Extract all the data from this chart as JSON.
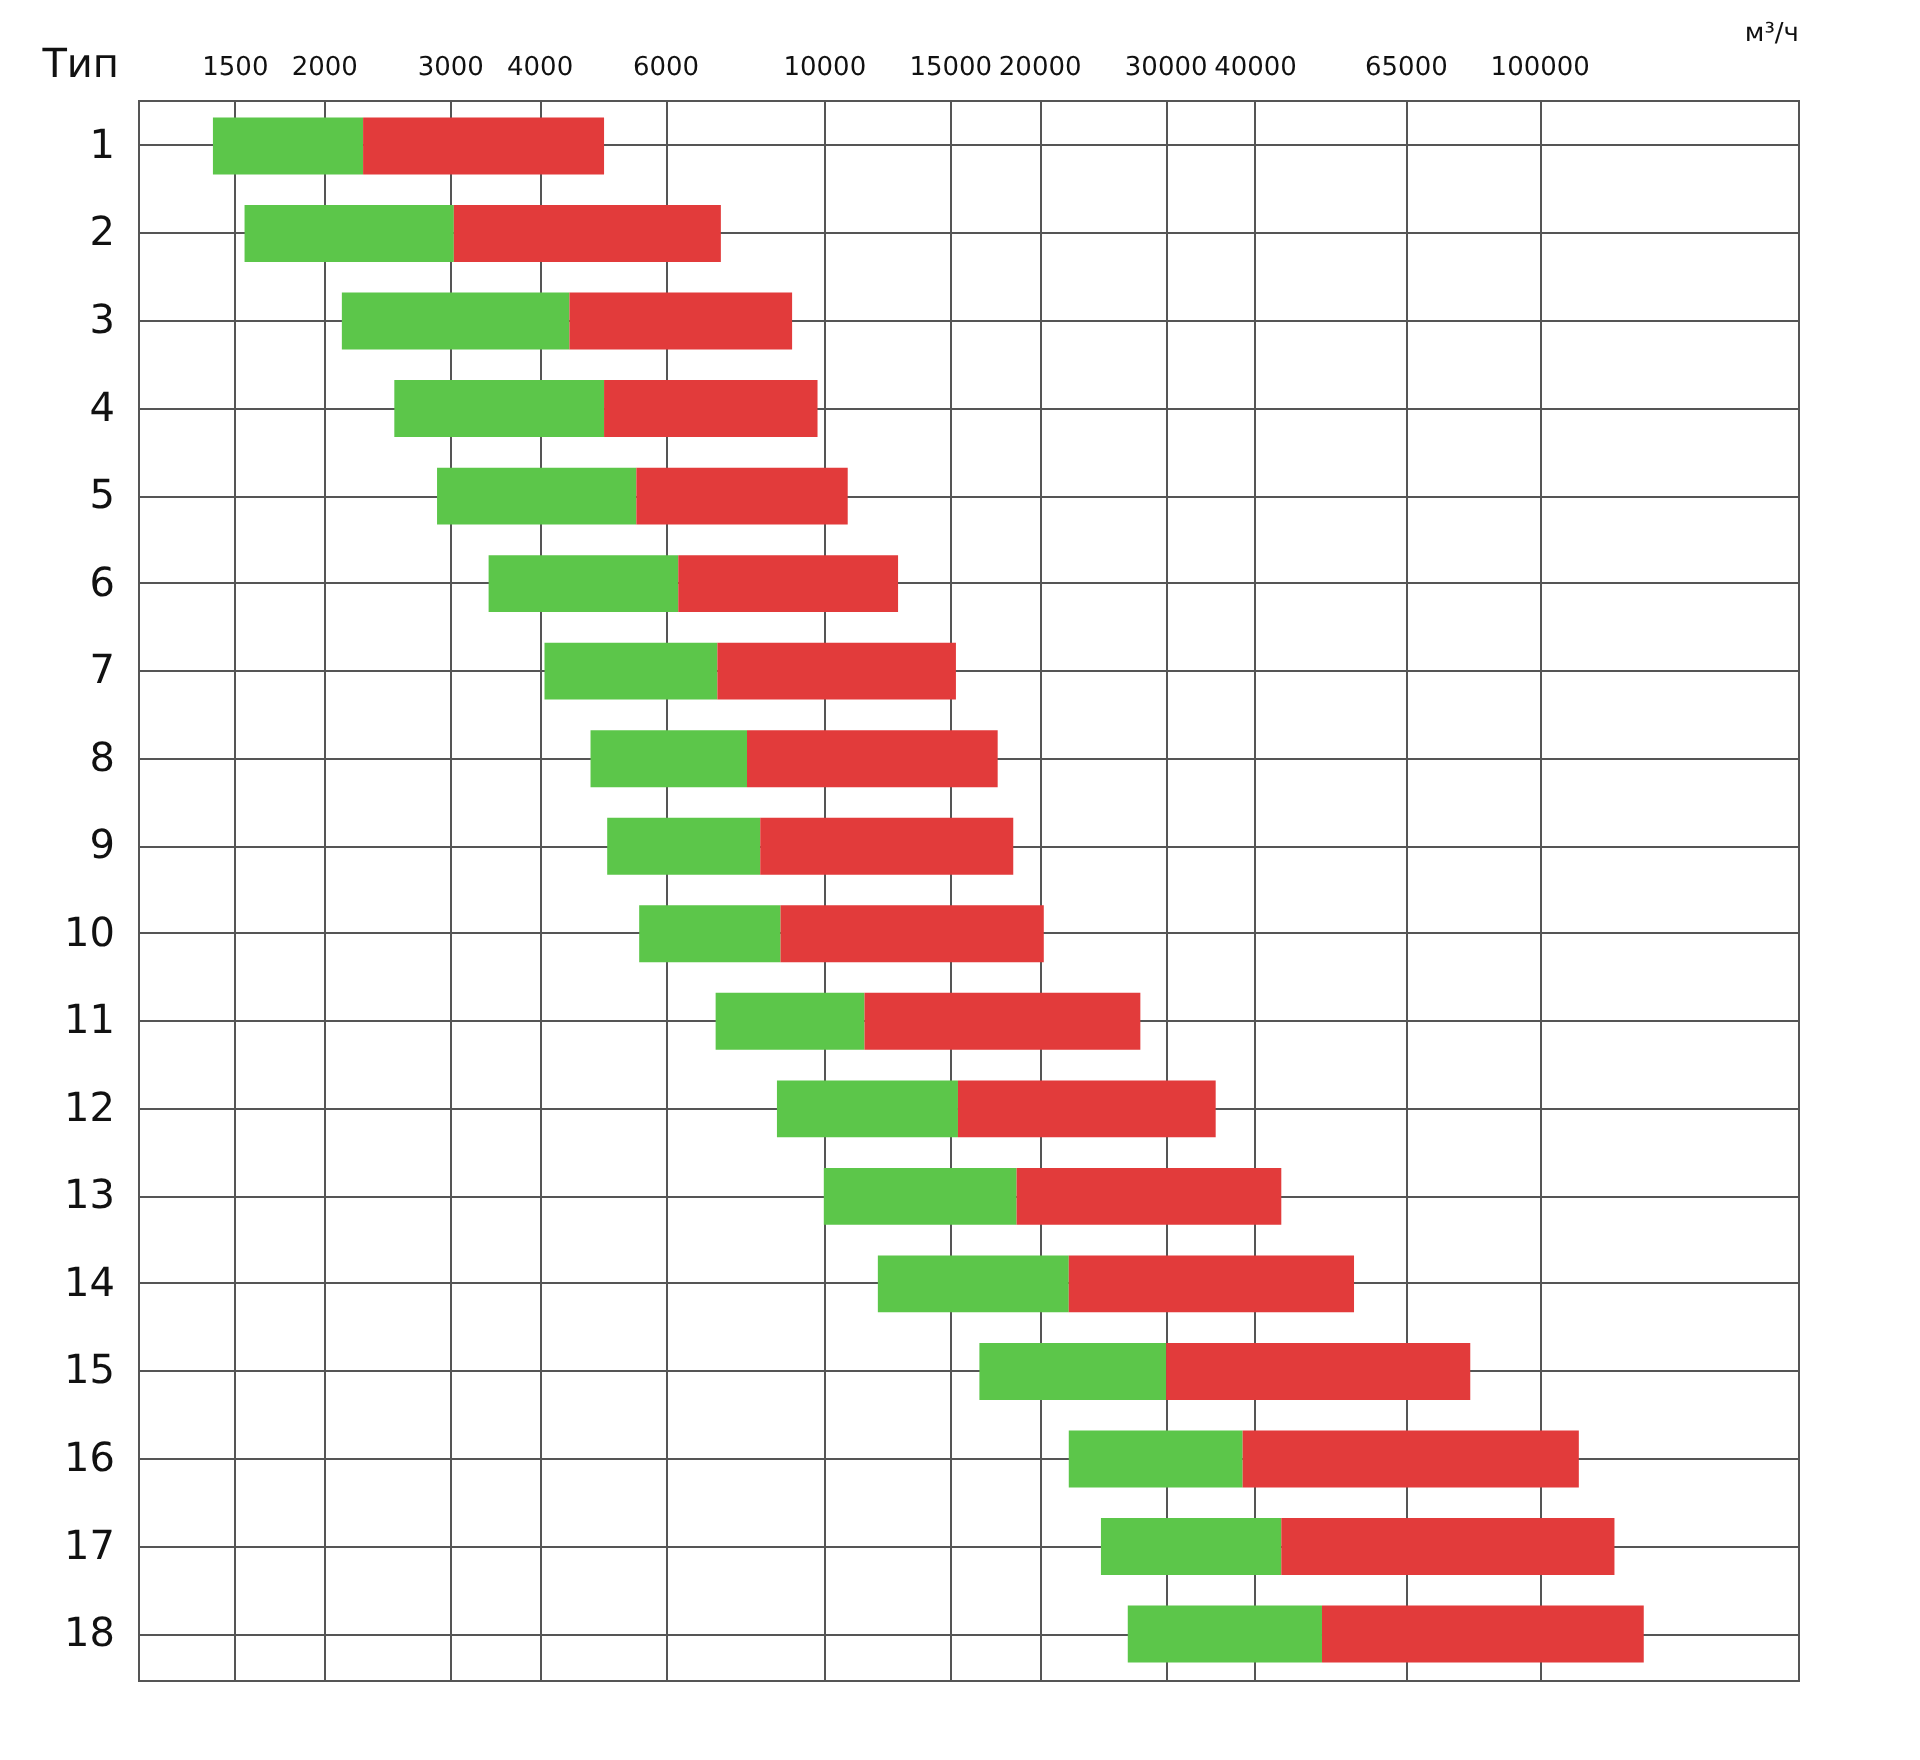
{
  "chart_data": {
    "type": "bar",
    "orientation": "horizontal",
    "ylabel": "Тип",
    "xlabel": "м³/ч",
    "categories": [
      "1",
      "2",
      "3",
      "4",
      "5",
      "6",
      "7",
      "8",
      "9",
      "10",
      "11",
      "12",
      "13",
      "14",
      "15",
      "16",
      "17",
      "18"
    ],
    "series": [
      {
        "color": "#5cc64a",
        "base": [
          1400,
          1550,
          2120,
          2510,
          2880,
          3400,
          4070,
          4720,
          4980,
          5520,
          7060,
          8600,
          10000,
          11900,
          16500,
          22000,
          24400,
          26600
        ],
        "values": [
          870,
          1490,
          2290,
          2420,
          2590,
          2860,
          3030,
          3090,
          3170,
          3180,
          4340,
          6800,
          8600,
          10100,
          13600,
          16500,
          19200,
          23100
        ]
      },
      {
        "color": "#e23b3b",
        "base": [
          2270,
          3040,
          4410,
          4930,
          5470,
          6260,
          7100,
          7810,
          8150,
          8700,
          11400,
          15400,
          18600,
          22000,
          30100,
          38500,
          43600,
          49700
        ],
        "values": [
          2660,
          4140,
          4620,
          4870,
          5330,
          6440,
          8200,
          9690,
          10250,
          11600,
          16300,
          19900,
          25000,
          33100,
          50000,
          75100,
          83800,
          90300
        ]
      }
    ],
    "xlim": [
      1100,
      230000
    ],
    "xticks": [
      1500,
      2000,
      3000,
      4000,
      6000,
      10000,
      15000,
      20000,
      30000,
      40000,
      65000,
      100000
    ],
    "log": "x",
    "grid": true,
    "legend": false
  }
}
